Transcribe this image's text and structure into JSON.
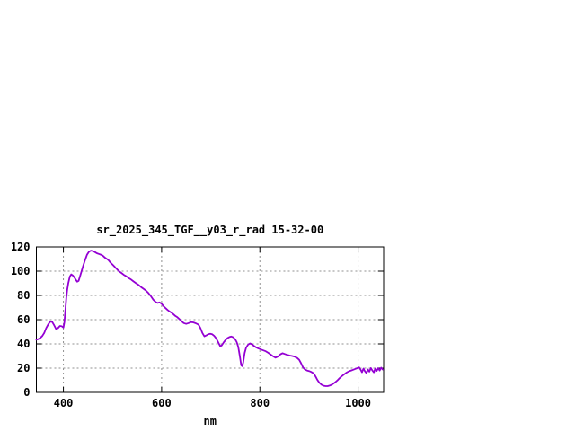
{
  "window": {
    "background": "#ffffff"
  },
  "chart_data": {
    "type": "line",
    "title": "sr_2025_345_TGF__y03_r_rad 15-32-00",
    "xlabel": "nm",
    "ylabel": "",
    "xlim": [
      345,
      1052
    ],
    "ylim": [
      0,
      120
    ],
    "xticks": [
      400,
      600,
      800,
      1000
    ],
    "yticks": [
      0,
      20,
      40,
      60,
      80,
      100,
      120
    ],
    "grid": true,
    "legend": "none",
    "border_color": "#000000",
    "grid_color": "#909090",
    "series": [
      {
        "name": "sr_2025_345_TGF__y03_r_rad",
        "color": "#9400D3",
        "points": [
          [
            345,
            43.5
          ],
          [
            349,
            44
          ],
          [
            353,
            45
          ],
          [
            357,
            46.5
          ],
          [
            361,
            49
          ],
          [
            365,
            53
          ],
          [
            369,
            56
          ],
          [
            373,
            58.3
          ],
          [
            377,
            58.3
          ],
          [
            381,
            55.5
          ],
          [
            385,
            52.3
          ],
          [
            389,
            53
          ],
          [
            393,
            54.8
          ],
          [
            397,
            54.5
          ],
          [
            400,
            53.5
          ],
          [
            402,
            58
          ],
          [
            404,
            68
          ],
          [
            406,
            78
          ],
          [
            408,
            85
          ],
          [
            410,
            90
          ],
          [
            413,
            95.5
          ],
          [
            416,
            97.3
          ],
          [
            419,
            96.5
          ],
          [
            422,
            95
          ],
          [
            425,
            93.2
          ],
          [
            428,
            91.3
          ],
          [
            431,
            92
          ],
          [
            434,
            96
          ],
          [
            437,
            100
          ],
          [
            440,
            104
          ],
          [
            444,
            109
          ],
          [
            448,
            113.5
          ],
          [
            452,
            116
          ],
          [
            456,
            117
          ],
          [
            460,
            116.6
          ],
          [
            464,
            115.8
          ],
          [
            468,
            114.8
          ],
          [
            472,
            114.2
          ],
          [
            476,
            113.6
          ],
          [
            480,
            112.8
          ],
          [
            484,
            111.3
          ],
          [
            488,
            110.2
          ],
          [
            492,
            109
          ],
          [
            496,
            107
          ],
          [
            500,
            105.5
          ],
          [
            504,
            103.8
          ],
          [
            508,
            102
          ],
          [
            513,
            100
          ],
          [
            518,
            98.5
          ],
          [
            523,
            97
          ],
          [
            528,
            95.8
          ],
          [
            533,
            94.3
          ],
          [
            538,
            93
          ],
          [
            543,
            91.5
          ],
          [
            548,
            90
          ],
          [
            553,
            88.7
          ],
          [
            558,
            87
          ],
          [
            563,
            85.5
          ],
          [
            568,
            84
          ],
          [
            573,
            82
          ],
          [
            578,
            79.5
          ],
          [
            583,
            76.5
          ],
          [
            588,
            74.5
          ],
          [
            592,
            73.8
          ],
          [
            596,
            74.2
          ],
          [
            600,
            73
          ],
          [
            604,
            71
          ],
          [
            608,
            69.5
          ],
          [
            612,
            68
          ],
          [
            616,
            66.8
          ],
          [
            620,
            65.8
          ],
          [
            624,
            64.5
          ],
          [
            628,
            63
          ],
          [
            632,
            62
          ],
          [
            636,
            60.5
          ],
          [
            640,
            59
          ],
          [
            645,
            57.2
          ],
          [
            650,
            56.5
          ],
          [
            655,
            57.2
          ],
          [
            660,
            58
          ],
          [
            665,
            57.7
          ],
          [
            670,
            56.9
          ],
          [
            675,
            55.9
          ],
          [
            679,
            53
          ],
          [
            683,
            49
          ],
          [
            687,
            46.2
          ],
          [
            691,
            47
          ],
          [
            695,
            48
          ],
          [
            699,
            48.4
          ],
          [
            703,
            47.9
          ],
          [
            707,
            46.6
          ],
          [
            711,
            44.6
          ],
          [
            715,
            41.5
          ],
          [
            719,
            38.2
          ],
          [
            722,
            38.6
          ],
          [
            726,
            41
          ],
          [
            730,
            43.2
          ],
          [
            734,
            44.8
          ],
          [
            738,
            45.6
          ],
          [
            742,
            46.1
          ],
          [
            746,
            45.4
          ],
          [
            750,
            43.6
          ],
          [
            753,
            41.5
          ],
          [
            756,
            37.5
          ],
          [
            759,
            30.5
          ],
          [
            762,
            22.3
          ],
          [
            764,
            21.6
          ],
          [
            766,
            24.5
          ],
          [
            769,
            32.5
          ],
          [
            772,
            36.8
          ],
          [
            776,
            39.4
          ],
          [
            780,
            40.4
          ],
          [
            784,
            39.6
          ],
          [
            788,
            38.3
          ],
          [
            792,
            37.2
          ],
          [
            797,
            36.2
          ],
          [
            802,
            35.4
          ],
          [
            807,
            34.7
          ],
          [
            812,
            33.9
          ],
          [
            817,
            32.7
          ],
          [
            822,
            31.2
          ],
          [
            827,
            29.8
          ],
          [
            832,
            28.7
          ],
          [
            837,
            29.6
          ],
          [
            842,
            31.4
          ],
          [
            846,
            32.3
          ],
          [
            851,
            31.6
          ],
          [
            856,
            30.9
          ],
          [
            861,
            30.4
          ],
          [
            866,
            30
          ],
          [
            871,
            29.4
          ],
          [
            876,
            28.4
          ],
          [
            880,
            26.9
          ],
          [
            884,
            23.9
          ],
          [
            888,
            20.6
          ],
          [
            892,
            18.9
          ],
          [
            896,
            18.1
          ],
          [
            900,
            17.6
          ],
          [
            904,
            17
          ],
          [
            908,
            16.1
          ],
          [
            911,
            14.9
          ],
          [
            914,
            12.7
          ],
          [
            917,
            10.4
          ],
          [
            920,
            8.7
          ],
          [
            923,
            7.2
          ],
          [
            926,
            6.2
          ],
          [
            930,
            5.5
          ],
          [
            934,
            5.2
          ],
          [
            938,
            5.2
          ],
          [
            942,
            5.6
          ],
          [
            946,
            6.3
          ],
          [
            950,
            7.3
          ],
          [
            954,
            8.5
          ],
          [
            958,
            9.9
          ],
          [
            962,
            11.6
          ],
          [
            966,
            13.1
          ],
          [
            970,
            14.4
          ],
          [
            974,
            15.6
          ],
          [
            978,
            16.7
          ],
          [
            982,
            17.5
          ],
          [
            986,
            18.1
          ],
          [
            990,
            18.7
          ],
          [
            994,
            19.3
          ],
          [
            998,
            19.9
          ],
          [
            1002,
            20.6
          ],
          [
            1005,
            18.9
          ],
          [
            1008,
            16.6
          ],
          [
            1011,
            19.6
          ],
          [
            1014,
            17.4
          ],
          [
            1017,
            15.9
          ],
          [
            1020,
            18.9
          ],
          [
            1023,
            17.1
          ],
          [
            1026,
            20.1
          ],
          [
            1029,
            18.1
          ],
          [
            1032,
            16.5
          ],
          [
            1035,
            19.6
          ],
          [
            1038,
            17.7
          ],
          [
            1041,
            20
          ],
          [
            1044,
            18.1
          ],
          [
            1047,
            20.4
          ],
          [
            1050,
            18.9
          ]
        ]
      }
    ]
  }
}
